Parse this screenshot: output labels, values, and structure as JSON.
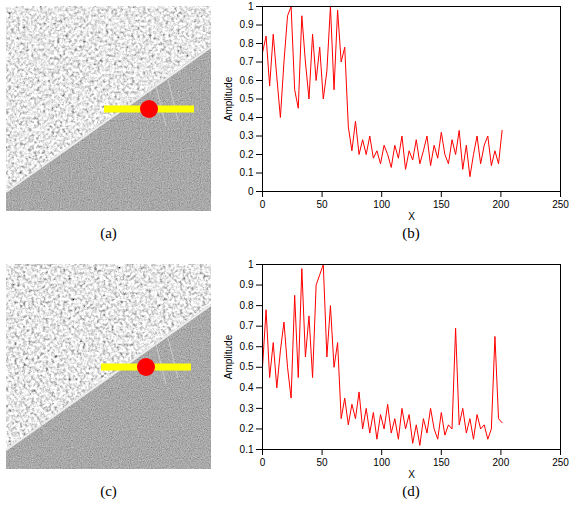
{
  "images": [
    {
      "caption": "(a)"
    },
    {
      "caption": "(c)"
    }
  ],
  "chart_data": [
    {
      "type": "line",
      "caption": "(b)",
      "x_label": "X",
      "y_label": "Amplitude",
      "color": "#ff0000",
      "xlim": [
        0,
        250
      ],
      "xticks": [
        0,
        50,
        100,
        150,
        200,
        250
      ],
      "ylim": [
        0,
        1
      ],
      "yticks": [
        0,
        0.1,
        0.2,
        0.3,
        0.4,
        0.5,
        0.6,
        0.7,
        0.8,
        0.9,
        1
      ],
      "x": [
        0,
        3,
        6,
        9,
        12,
        15,
        18,
        21,
        24,
        27,
        30,
        33,
        36,
        39,
        42,
        45,
        48,
        51,
        54,
        57,
        60,
        63,
        66,
        69,
        72,
        75,
        78,
        81,
        84,
        87,
        90,
        93,
        96,
        99,
        102,
        105,
        108,
        111,
        114,
        117,
        120,
        123,
        126,
        129,
        132,
        135,
        138,
        141,
        144,
        147,
        150,
        153,
        156,
        159,
        162,
        165,
        168,
        171,
        174,
        177,
        180,
        183,
        186,
        189,
        192,
        195,
        198,
        201
      ],
      "values": [
        0.75,
        0.84,
        0.57,
        0.85,
        0.62,
        0.4,
        0.7,
        0.95,
        1.0,
        0.55,
        0.45,
        0.95,
        0.7,
        0.5,
        0.85,
        0.6,
        0.78,
        0.5,
        0.65,
        1.0,
        0.55,
        0.98,
        0.7,
        0.78,
        0.35,
        0.22,
        0.38,
        0.2,
        0.28,
        0.2,
        0.3,
        0.18,
        0.22,
        0.15,
        0.25,
        0.2,
        0.13,
        0.25,
        0.18,
        0.3,
        0.12,
        0.22,
        0.17,
        0.28,
        0.15,
        0.22,
        0.3,
        0.14,
        0.25,
        0.18,
        0.32,
        0.2,
        0.15,
        0.28,
        0.2,
        0.33,
        0.12,
        0.25,
        0.08,
        0.2,
        0.3,
        0.15,
        0.25,
        0.3,
        0.14,
        0.22,
        0.15,
        0.33
      ]
    },
    {
      "type": "line",
      "caption": "(d)",
      "x_label": "X",
      "y_label": "Amplitude",
      "color": "#ff0000",
      "xlim": [
        0,
        250
      ],
      "xticks": [
        0,
        50,
        100,
        150,
        200,
        250
      ],
      "ylim": [
        0.1,
        1
      ],
      "yticks": [
        0.1,
        0.2,
        0.3,
        0.4,
        0.5,
        0.6,
        0.7,
        0.8,
        0.9,
        1
      ],
      "x": [
        0,
        3,
        6,
        9,
        12,
        15,
        18,
        21,
        24,
        27,
        30,
        33,
        36,
        39,
        42,
        45,
        48,
        51,
        54,
        57,
        60,
        63,
        66,
        69,
        72,
        75,
        78,
        81,
        84,
        87,
        90,
        93,
        96,
        99,
        102,
        105,
        108,
        111,
        114,
        117,
        120,
        123,
        126,
        129,
        132,
        135,
        138,
        141,
        144,
        147,
        150,
        153,
        156,
        159,
        162,
        165,
        168,
        171,
        174,
        177,
        180,
        183,
        186,
        189,
        192,
        195,
        198,
        201
      ],
      "values": [
        0.5,
        0.78,
        0.45,
        0.62,
        0.4,
        0.58,
        0.72,
        0.5,
        0.35,
        0.85,
        0.45,
        0.98,
        0.55,
        0.75,
        0.45,
        0.9,
        0.95,
        1.0,
        0.55,
        0.8,
        0.5,
        0.62,
        0.25,
        0.35,
        0.22,
        0.32,
        0.25,
        0.38,
        0.2,
        0.3,
        0.18,
        0.28,
        0.15,
        0.27,
        0.2,
        0.32,
        0.18,
        0.25,
        0.15,
        0.3,
        0.2,
        0.27,
        0.13,
        0.22,
        0.12,
        0.25,
        0.18,
        0.3,
        0.2,
        0.15,
        0.28,
        0.17,
        0.22,
        0.2,
        0.69,
        0.22,
        0.3,
        0.18,
        0.25,
        0.15,
        0.27,
        0.2,
        0.22,
        0.15,
        0.2,
        0.65,
        0.25,
        0.23
      ]
    }
  ]
}
